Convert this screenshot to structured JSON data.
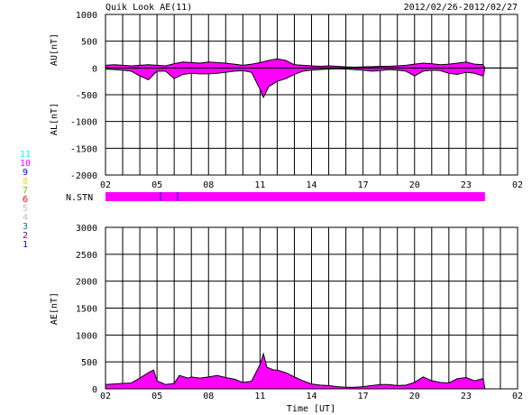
{
  "chart_data": [
    {
      "type": "area",
      "title": "Quik Look AE(11)",
      "date_range": "2012/02/26-2012/02/27",
      "ylabel_top": "AU[nT]",
      "ylabel_bottom": "AL[nT]",
      "ylim": [
        -2000,
        1000
      ],
      "yticks": [
        "1000",
        "500",
        "0",
        "-500",
        "-1000",
        "-1500",
        "-2000"
      ],
      "xlim": [
        2,
        26
      ],
      "xtick_labels": [
        "02",
        "05",
        "08",
        "11",
        "14",
        "17",
        "20",
        "23",
        "02"
      ],
      "grid": true,
      "fill_color": "#ff00ff",
      "series": [
        {
          "name": "AU",
          "x": [
            2,
            2.5,
            3,
            3.5,
            4,
            4.5,
            5,
            5.5,
            6,
            6.5,
            7,
            7.5,
            8,
            8.5,
            9,
            9.5,
            10,
            10.5,
            11,
            11.5,
            12,
            12.5,
            13,
            13.5,
            14,
            14.5,
            15,
            15.5,
            16,
            16.5,
            17,
            17.5,
            18,
            18.5,
            19,
            19.5,
            20,
            20.5,
            21,
            21.5,
            22,
            22.5,
            23,
            23.5,
            24,
            24.1
          ],
          "values": [
            50,
            60,
            50,
            40,
            50,
            60,
            50,
            40,
            80,
            110,
            100,
            90,
            110,
            100,
            90,
            70,
            50,
            70,
            100,
            140,
            170,
            140,
            60,
            50,
            40,
            30,
            40,
            30,
            20,
            15,
            20,
            25,
            30,
            30,
            40,
            50,
            70,
            90,
            80,
            60,
            70,
            90,
            110,
            70,
            60,
            0
          ]
        },
        {
          "name": "AL",
          "x": [
            2,
            2.5,
            3,
            3.5,
            4,
            4.5,
            5,
            5.5,
            6,
            6.5,
            7,
            7.5,
            8,
            8.5,
            9,
            9.5,
            10,
            10.5,
            11,
            11.2,
            11.5,
            12,
            12.5,
            13,
            13.5,
            14,
            14.5,
            15,
            15.5,
            16,
            16.5,
            17,
            17.5,
            18,
            18.5,
            19,
            19.5,
            20,
            20.5,
            21,
            21.5,
            22,
            22.5,
            23,
            23.5,
            24,
            24.1
          ],
          "values": [
            -20,
            -30,
            -40,
            -60,
            -150,
            -220,
            -60,
            -60,
            -200,
            -120,
            -100,
            -110,
            -110,
            -100,
            -80,
            -60,
            -50,
            -80,
            -400,
            -550,
            -350,
            -250,
            -200,
            -120,
            -60,
            -40,
            -30,
            -20,
            -15,
            -20,
            -30,
            -40,
            -60,
            -50,
            -30,
            -40,
            -60,
            -150,
            -60,
            -40,
            -50,
            -100,
            -120,
            -80,
            -100,
            -150,
            0
          ]
        }
      ]
    },
    {
      "type": "bar",
      "label": "N.STN",
      "x_start": 2,
      "x_end": 24.1,
      "color": "#ff00ff",
      "markers": [
        {
          "x": 5.2,
          "color": "#0000ff"
        },
        {
          "x": 6.2,
          "color": "#0000ff"
        }
      ]
    },
    {
      "type": "area",
      "ylabel": "AE[nT]",
      "xlabel": "Time [UT]",
      "ylim": [
        0,
        3000
      ],
      "yticks": [
        "3000",
        "2500",
        "2000",
        "1500",
        "1000",
        "500",
        "0"
      ],
      "xlim": [
        2,
        26
      ],
      "xtick_labels": [
        "02",
        "05",
        "08",
        "11",
        "14",
        "17",
        "20",
        "23",
        "02"
      ],
      "grid": true,
      "fill_color": "#ff00ff",
      "series": [
        {
          "name": "AE",
          "x": [
            2,
            2.5,
            3,
            3.5,
            4,
            4.5,
            4.8,
            5,
            5.5,
            6,
            6.3,
            6.8,
            7,
            7.5,
            8,
            8.5,
            9,
            9.5,
            10,
            10.5,
            11,
            11.2,
            11.4,
            11.8,
            12,
            12.5,
            13,
            13.5,
            14,
            14.5,
            15,
            15.5,
            16,
            16.5,
            17,
            17.5,
            18,
            18.5,
            19,
            19.5,
            20,
            20.5,
            21,
            21.5,
            22,
            22.5,
            23,
            23.5,
            24,
            24.1
          ],
          "values": [
            80,
            90,
            100,
            110,
            200,
            300,
            350,
            150,
            80,
            100,
            250,
            200,
            220,
            200,
            220,
            250,
            210,
            180,
            120,
            140,
            450,
            650,
            400,
            350,
            350,
            300,
            220,
            150,
            90,
            70,
            60,
            40,
            30,
            30,
            40,
            60,
            80,
            80,
            60,
            70,
            120,
            220,
            150,
            120,
            110,
            190,
            210,
            150,
            190,
            0
          ]
        }
      ]
    }
  ],
  "station_legend": {
    "labels": [
      "11",
      "10",
      "9",
      "8",
      "7",
      "6",
      "5",
      "4",
      "3",
      "2",
      "1"
    ],
    "colors": [
      "#00ffff",
      "#ff00ff",
      "#0000ff",
      "#ffd700",
      "#80c000",
      "#ff0000",
      "#c0c0c0",
      "#c0c0c0",
      "#008080",
      "#800080",
      "#0000a0"
    ]
  }
}
